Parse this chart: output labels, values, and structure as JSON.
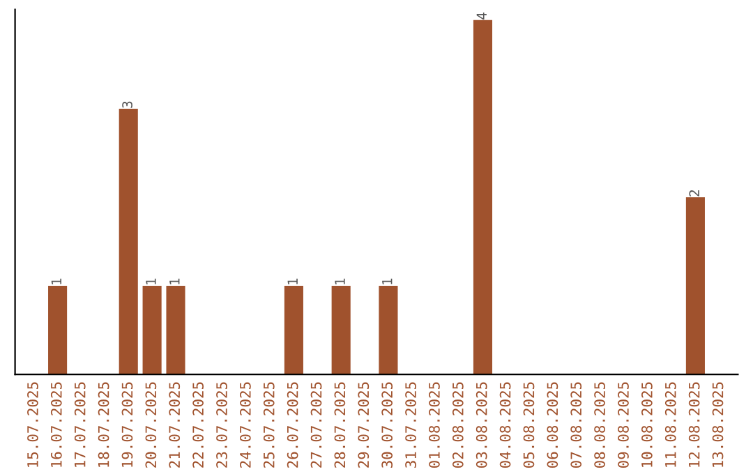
{
  "chart_data": {
    "type": "bar",
    "categories": [
      "15.07.2025",
      "16.07.2025",
      "17.07.2025",
      "18.07.2025",
      "19.07.2025",
      "20.07.2025",
      "21.07.2025",
      "22.07.2025",
      "23.07.2025",
      "24.07.2025",
      "25.07.2025",
      "26.07.2025",
      "27.07.2025",
      "28.07.2025",
      "29.07.2025",
      "30.07.2025",
      "31.07.2025",
      "01.08.2025",
      "02.08.2025",
      "03.08.2025",
      "04.08.2025",
      "05.08.2025",
      "06.08.2025",
      "07.08.2025",
      "08.08.2025",
      "09.08.2025",
      "10.08.2025",
      "11.08.2025",
      "12.08.2025",
      "13.08.2025"
    ],
    "values": [
      0,
      1,
      0,
      0,
      3,
      1,
      1,
      0,
      0,
      0,
      0,
      1,
      0,
      1,
      0,
      1,
      0,
      0,
      0,
      4,
      0,
      0,
      0,
      0,
      0,
      0,
      0,
      0,
      2,
      0
    ],
    "value_labels": [
      null,
      "1",
      null,
      null,
      "3",
      "1",
      "1",
      null,
      null,
      null,
      null,
      "1",
      null,
      "1",
      null,
      "1",
      null,
      null,
      null,
      "4",
      null,
      null,
      null,
      null,
      null,
      null,
      null,
      null,
      "2",
      null
    ],
    "color": "#a0522d",
    "grid": false,
    "legend": false,
    "tick_labels": "x"
  }
}
